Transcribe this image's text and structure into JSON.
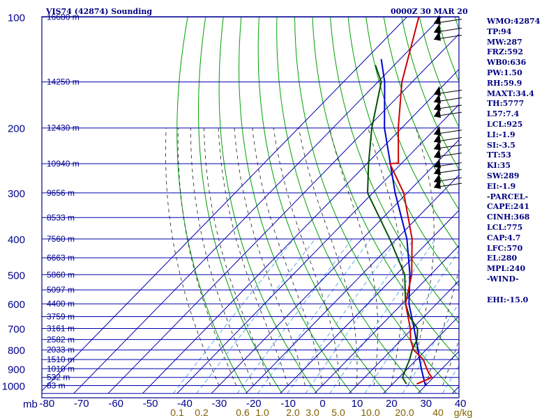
{
  "header": {
    "station_title": "VIS74 (42874) Sounding",
    "time_title": "0000Z 30 MAR 20"
  },
  "indices": [
    "WMO:42874",
    "TP:94",
    "MW:287",
    "FRZ:592",
    "WB0:636",
    "PW:1.50",
    "RH:59.9",
    "MAXT:34.4",
    "TH:5777",
    "L57:7.4",
    "LCL:925",
    "LI:-1.9",
    "SI:-3.5",
    "TT:53",
    "KI:35",
    "SW:289",
    "EI:-1.9",
    "-PARCEL-",
    "CAPE:241",
    "CINH:368",
    "LCL:775",
    "CAP:4.7",
    "LFC:570",
    "EL:280",
    "MPL:240",
    "-WIND-",
    "",
    "EHI:-15.0"
  ],
  "colors": {
    "frame": "#00008b",
    "isobar": "#0000b0",
    "isotherm": "#0000b0",
    "dry_adiabat": "#00a000",
    "moist_adiabat": "#333333",
    "mixing_ratio": "#4aa0e6",
    "temperature": "#cc0000",
    "dewpoint": "#005000",
    "parcel": "#0000cc",
    "axis_text": "#00008b",
    "mixing_text": "#806000",
    "index_text": "#000080"
  },
  "chart_data": {
    "type": "skew-t log-p sounding",
    "title": "VIS74 (42874) Sounding",
    "time": "0000Z 30 MAR 20",
    "x_unit": "C",
    "y_unit": "mb",
    "pressure_levels": [
      100,
      200,
      300,
      400,
      500,
      600,
      700,
      800,
      900,
      1000
    ],
    "pressure_axis_label": "mb",
    "pressure_range": [
      100,
      1050
    ],
    "temperature_ticks": [
      -80,
      -70,
      -60,
      -50,
      -40,
      -30,
      -20,
      -10,
      0,
      10,
      20,
      30,
      40
    ],
    "height_labels": [
      {
        "p": 100,
        "label": "16680 m"
      },
      {
        "p": 150,
        "label": "14250 m"
      },
      {
        "p": 200,
        "label": "12430 m"
      },
      {
        "p": 250,
        "label": "10940 m"
      },
      {
        "p": 300,
        "label": "9656 m"
      },
      {
        "p": 350,
        "label": "8533 m"
      },
      {
        "p": 400,
        "label": "7560 m"
      },
      {
        "p": 450,
        "label": "6663 m"
      },
      {
        "p": 500,
        "label": "5860 m"
      },
      {
        "p": 550,
        "label": "5097 m"
      },
      {
        "p": 600,
        "label": "4400 m"
      },
      {
        "p": 650,
        "label": "3759 m"
      },
      {
        "p": 700,
        "label": "3161 m"
      },
      {
        "p": 750,
        "label": "2582 m"
      },
      {
        "p": 800,
        "label": "2033 m"
      },
      {
        "p": 850,
        "label": "1510 m"
      },
      {
        "p": 900,
        "label": "1010 m"
      },
      {
        "p": 950,
        "label": "532 m"
      },
      {
        "p": 1000,
        "label": "83 m"
      }
    ],
    "mixing_ratio_labels": [
      "0.1",
      "0.2",
      "0.6",
      "1.0",
      "2.0",
      "3.0",
      "5.0",
      "10.0",
      "20.0",
      "40",
      "g/kg"
    ],
    "mixing_ratio_values": [
      0.1,
      0.2,
      0.6,
      1.0,
      2.0,
      3.0,
      5.0,
      10.0,
      20.0,
      40.0
    ],
    "temperature_profile": [
      {
        "p": 990,
        "t": 27.0
      },
      {
        "p": 960,
        "t": 29.0
      },
      {
        "p": 950,
        "t": 29.5
      },
      {
        "p": 925,
        "t": 27.4
      },
      {
        "p": 900,
        "t": 25.6
      },
      {
        "p": 850,
        "t": 22.0
      },
      {
        "p": 800,
        "t": 16.4
      },
      {
        "p": 750,
        "t": 12.6
      },
      {
        "p": 700,
        "t": 9.4
      },
      {
        "p": 600,
        "t": 1.0
      },
      {
        "p": 500,
        "t": -5.5
      },
      {
        "p": 400,
        "t": -15.5
      },
      {
        "p": 300,
        "t": -31.0
      },
      {
        "p": 250,
        "t": -43.3
      },
      {
        "p": 249,
        "t": -41.0
      },
      {
        "p": 200,
        "t": -51.0
      },
      {
        "p": 150,
        "t": -63.0
      },
      {
        "p": 100,
        "t": -76.5
      }
    ],
    "dewpoint_profile": [
      {
        "p": 990,
        "t": 24.0
      },
      {
        "p": 950,
        "t": 21.0
      },
      {
        "p": 900,
        "t": 19.5
      },
      {
        "p": 850,
        "t": 18.0
      },
      {
        "p": 800,
        "t": 16.0
      },
      {
        "p": 750,
        "t": 14.5
      },
      {
        "p": 700,
        "t": 11.5
      },
      {
        "p": 650,
        "t": 5.8
      },
      {
        "p": 600,
        "t": 1.0
      },
      {
        "p": 500,
        "t": -7.5
      },
      {
        "p": 400,
        "t": -22.0
      },
      {
        "p": 300,
        "t": -41.5
      },
      {
        "p": 250,
        "t": -49.5
      },
      {
        "p": 200,
        "t": -58.7
      },
      {
        "p": 150,
        "t": -69.0
      },
      {
        "p": 135,
        "t": -75.5
      }
    ],
    "parcel_profile": [
      {
        "p": 1000,
        "t": 30.0
      },
      {
        "p": 900,
        "t": 24.0
      },
      {
        "p": 775,
        "t": 16.0
      },
      {
        "p": 700,
        "t": 10.5
      },
      {
        "p": 600,
        "t": 2.0
      },
      {
        "p": 500,
        "t": -6.0
      },
      {
        "p": 400,
        "t": -17.0
      },
      {
        "p": 300,
        "t": -33.5
      },
      {
        "p": 200,
        "t": -55.0
      },
      {
        "p": 150,
        "t": -68.0
      },
      {
        "p": 130,
        "t": -75.5
      }
    ],
    "wind_barbs": [
      {
        "p": 104,
        "dir": 270,
        "spd": 60
      },
      {
        "p": 110,
        "dir": 265,
        "spd": 55
      },
      {
        "p": 115,
        "dir": 260,
        "spd": 55
      },
      {
        "p": 162,
        "dir": 265,
        "spd": 50
      },
      {
        "p": 170,
        "dir": 260,
        "spd": 55
      },
      {
        "p": 178,
        "dir": 255,
        "spd": 50
      },
      {
        "p": 186,
        "dir": 260,
        "spd": 45
      },
      {
        "p": 208,
        "dir": 250,
        "spd": 45
      },
      {
        "p": 218,
        "dir": 245,
        "spd": 50
      },
      {
        "p": 228,
        "dir": 245,
        "spd": 50
      },
      {
        "p": 240,
        "dir": 240,
        "spd": 45
      },
      {
        "p": 255,
        "dir": 240,
        "spd": 45
      },
      {
        "p": 266,
        "dir": 235,
        "spd": 40
      },
      {
        "p": 280,
        "dir": 235,
        "spd": 35
      },
      {
        "p": 290,
        "dir": 230,
        "spd": 35
      }
    ],
    "dry_adiabat_thetas_K": [
      250,
      260,
      270,
      280,
      290,
      300,
      310,
      320,
      330,
      340,
      350,
      360,
      370,
      380,
      390,
      400,
      410,
      420,
      430,
      440,
      450,
      460,
      470,
      480,
      490,
      500,
      510,
      520,
      530,
      540,
      550,
      560
    ],
    "moist_adiabat_start_C": [
      -30,
      -25,
      -20,
      -15,
      -10,
      -5,
      0,
      5,
      10,
      15,
      20,
      25,
      30,
      35,
      40
    ]
  }
}
